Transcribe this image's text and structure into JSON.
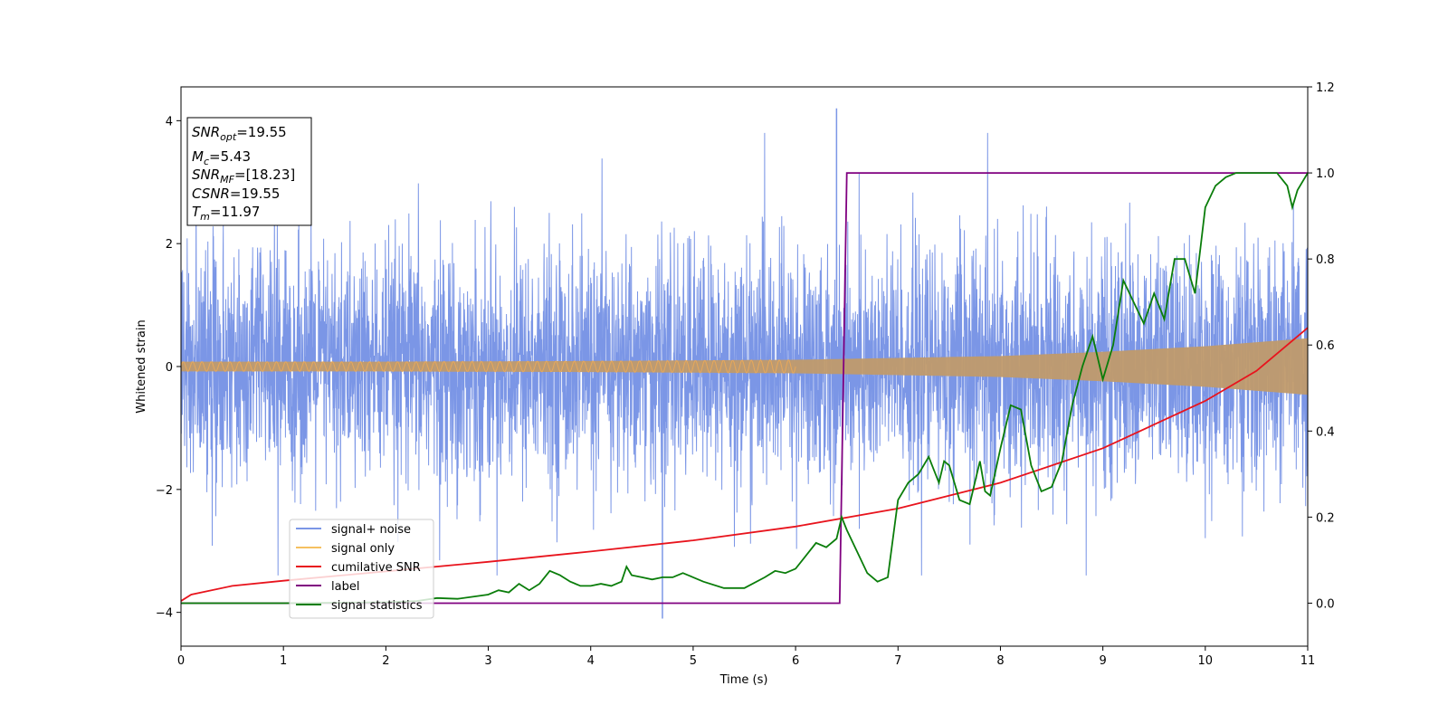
{
  "chart_data": {
    "type": "line",
    "xlabel": "Time (s)",
    "ylabel": "Whitened strain",
    "xlim": [
      0,
      11
    ],
    "ylim_left": [
      -4.55,
      4.55
    ],
    "ylim_right": [
      -0.1,
      1.2
    ],
    "x_ticks": [
      "0",
      "1",
      "2",
      "3",
      "4",
      "5",
      "6",
      "7",
      "8",
      "9",
      "10",
      "11"
    ],
    "y_ticks_left": [
      "−4",
      "−2",
      "0",
      "2",
      "4"
    ],
    "y_ticks_right": [
      "0.0",
      "0.2",
      "0.4",
      "0.6",
      "0.8",
      "1.0",
      "1.2"
    ],
    "grid": false,
    "legend_placement": "lower-left",
    "info_box": {
      "lines": [
        {
          "main": "SNR",
          "sub": "opt",
          "rest": "=19.55"
        },
        {
          "main": "M",
          "sub": "c",
          "rest": "=5.43"
        },
        {
          "main": "SNR",
          "sub": "MF",
          "rest": "=[18.23]"
        },
        {
          "main": "CSNR",
          "sub": "",
          "rest": "=19.55"
        },
        {
          "main": "T",
          "sub": "m",
          "rest": "=11.97"
        }
      ]
    },
    "series": [
      {
        "name": "signal+ noise",
        "axis": "left",
        "color": "#7b96e6",
        "description_values": {
          "typical_range": [
            -2.3,
            2.3
          ],
          "max": 4.2,
          "min": -4.1,
          "max_time": 6.4,
          "min_time": 4.7
        }
      },
      {
        "name": "signal only",
        "axis": "left",
        "color": "#f5b041",
        "amplitude_points": [
          [
            0,
            0.08
          ],
          [
            2,
            0.08
          ],
          [
            4,
            0.09
          ],
          [
            6,
            0.11
          ],
          [
            8,
            0.17
          ],
          [
            9,
            0.24
          ],
          [
            10,
            0.33
          ],
          [
            11,
            0.46
          ]
        ]
      },
      {
        "name": "cumilative SNR",
        "axis": "right",
        "color": "#e8141d",
        "points": [
          [
            0,
            0.005
          ],
          [
            0.1,
            0.02
          ],
          [
            0.5,
            0.04
          ],
          [
            1,
            0.052
          ],
          [
            2,
            0.074
          ],
          [
            3,
            0.096
          ],
          [
            4,
            0.12
          ],
          [
            5,
            0.146
          ],
          [
            6,
            0.178
          ],
          [
            7,
            0.22
          ],
          [
            8,
            0.28
          ],
          [
            9,
            0.36
          ],
          [
            10,
            0.47
          ],
          [
            10.5,
            0.54
          ],
          [
            11,
            0.64
          ]
        ]
      },
      {
        "name": "label",
        "axis": "right",
        "color": "#800080",
        "points": [
          [
            0,
            0.0
          ],
          [
            6.43,
            0.0
          ],
          [
            6.5,
            1.0
          ],
          [
            11,
            1.0
          ]
        ]
      },
      {
        "name": "signal statistics",
        "axis": "right",
        "color": "#0a7d0a",
        "points": [
          [
            0,
            0.0
          ],
          [
            1,
            0.0
          ],
          [
            2,
            0.002
          ],
          [
            2.3,
            0.005
          ],
          [
            2.5,
            0.012
          ],
          [
            2.7,
            0.01
          ],
          [
            3.0,
            0.02
          ],
          [
            3.1,
            0.03
          ],
          [
            3.2,
            0.025
          ],
          [
            3.3,
            0.045
          ],
          [
            3.4,
            0.03
          ],
          [
            3.5,
            0.045
          ],
          [
            3.6,
            0.075
          ],
          [
            3.7,
            0.065
          ],
          [
            3.8,
            0.05
          ],
          [
            3.9,
            0.04
          ],
          [
            4.0,
            0.04
          ],
          [
            4.1,
            0.045
          ],
          [
            4.2,
            0.04
          ],
          [
            4.3,
            0.05
          ],
          [
            4.35,
            0.085
          ],
          [
            4.4,
            0.065
          ],
          [
            4.5,
            0.06
          ],
          [
            4.6,
            0.055
          ],
          [
            4.7,
            0.06
          ],
          [
            4.8,
            0.06
          ],
          [
            4.9,
            0.07
          ],
          [
            5.0,
            0.06
          ],
          [
            5.1,
            0.05
          ],
          [
            5.3,
            0.035
          ],
          [
            5.5,
            0.035
          ],
          [
            5.7,
            0.06
          ],
          [
            5.8,
            0.075
          ],
          [
            5.9,
            0.07
          ],
          [
            6.0,
            0.08
          ],
          [
            6.2,
            0.14
          ],
          [
            6.3,
            0.13
          ],
          [
            6.4,
            0.15
          ],
          [
            6.45,
            0.2
          ],
          [
            6.5,
            0.17
          ],
          [
            6.6,
            0.12
          ],
          [
            6.7,
            0.07
          ],
          [
            6.8,
            0.05
          ],
          [
            6.9,
            0.06
          ],
          [
            7.0,
            0.24
          ],
          [
            7.1,
            0.28
          ],
          [
            7.2,
            0.3
          ],
          [
            7.3,
            0.34
          ],
          [
            7.4,
            0.28
          ],
          [
            7.45,
            0.33
          ],
          [
            7.5,
            0.32
          ],
          [
            7.6,
            0.24
          ],
          [
            7.7,
            0.23
          ],
          [
            7.8,
            0.33
          ],
          [
            7.85,
            0.26
          ],
          [
            7.9,
            0.25
          ],
          [
            8.0,
            0.36
          ],
          [
            8.1,
            0.46
          ],
          [
            8.2,
            0.45
          ],
          [
            8.3,
            0.32
          ],
          [
            8.4,
            0.26
          ],
          [
            8.5,
            0.27
          ],
          [
            8.6,
            0.33
          ],
          [
            8.7,
            0.46
          ],
          [
            8.8,
            0.55
          ],
          [
            8.9,
            0.62
          ],
          [
            9.0,
            0.52
          ],
          [
            9.1,
            0.6
          ],
          [
            9.2,
            0.75
          ],
          [
            9.3,
            0.7
          ],
          [
            9.4,
            0.65
          ],
          [
            9.5,
            0.72
          ],
          [
            9.6,
            0.66
          ],
          [
            9.7,
            0.8
          ],
          [
            9.8,
            0.8
          ],
          [
            9.85,
            0.76
          ],
          [
            9.9,
            0.72
          ],
          [
            10.0,
            0.92
          ],
          [
            10.1,
            0.97
          ],
          [
            10.2,
            0.99
          ],
          [
            10.3,
            1.0
          ],
          [
            10.5,
            1.0
          ],
          [
            10.6,
            1.0
          ],
          [
            10.7,
            1.0
          ],
          [
            10.8,
            0.97
          ],
          [
            10.85,
            0.92
          ],
          [
            10.9,
            0.96
          ],
          [
            11.0,
            1.0
          ]
        ]
      }
    ]
  }
}
